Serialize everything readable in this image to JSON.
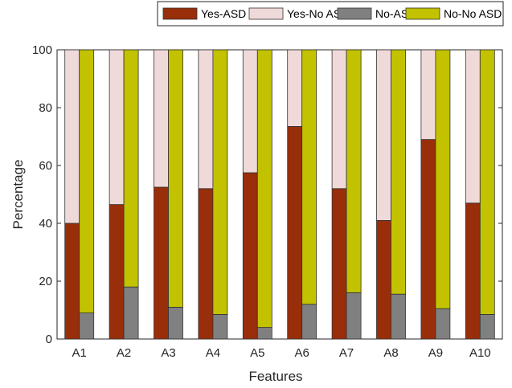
{
  "chart_data": {
    "type": "bar",
    "stacked_pairs": true,
    "xlabel": "Features",
    "ylabel": "Percentage",
    "ylim": [
      0,
      100
    ],
    "yticks": [
      0,
      20,
      40,
      60,
      80,
      100
    ],
    "categories": [
      "A1",
      "A2",
      "A3",
      "A4",
      "A5",
      "A6",
      "A7",
      "A8",
      "A9",
      "A10"
    ],
    "legend_position": "top, outside plot",
    "series": [
      {
        "name": "Yes-ASD",
        "group": "yes",
        "color": "#992e0a",
        "values": [
          40,
          46.5,
          52.5,
          52,
          57.5,
          73.5,
          52,
          41,
          69,
          47
        ]
      },
      {
        "name": "Yes-No ASD",
        "group": "yes",
        "color": "#f0d9d9",
        "values": [
          60,
          53.5,
          47.5,
          48,
          42.5,
          26.5,
          48,
          59,
          31,
          53
        ]
      },
      {
        "name": "No-ASD",
        "group": "no",
        "color": "#808080",
        "values": [
          9,
          18,
          11,
          8.5,
          4,
          12,
          16,
          15.5,
          10.5,
          8.5
        ]
      },
      {
        "name": "No-No ASD",
        "group": "no",
        "color": "#c2c200",
        "values": [
          91,
          82,
          89,
          91.5,
          96,
          88,
          84,
          84.5,
          89.5,
          91.5
        ]
      }
    ]
  }
}
